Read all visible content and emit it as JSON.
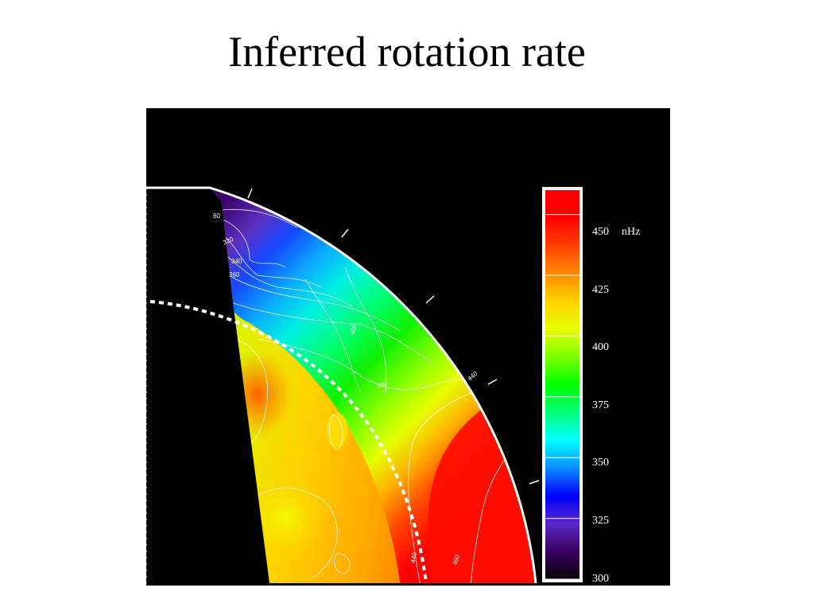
{
  "slide": {
    "title": "Inferred rotation rate"
  },
  "figure": {
    "background": "#000000",
    "contour_labels": [
      "60",
      "320",
      "340",
      "360",
      "400",
      "400",
      "440",
      "440",
      "460"
    ],
    "tachocline_style": "white dashed"
  },
  "colorbar": {
    "unit": "nHz",
    "tick_labels": [
      "450",
      "425",
      "400",
      "375",
      "350",
      "325",
      "300"
    ],
    "range": [
      300,
      460
    ],
    "colors": [
      "#0a0008",
      "#3c0060",
      "#5a28c8",
      "#0000ff",
      "#0a8cff",
      "#00ffff",
      "#00ff78",
      "#00ff00",
      "#7dff00",
      "#e6ff00",
      "#ffd200",
      "#ff8a00",
      "#ff4000",
      "#ff0000",
      "#ff0000"
    ]
  }
}
